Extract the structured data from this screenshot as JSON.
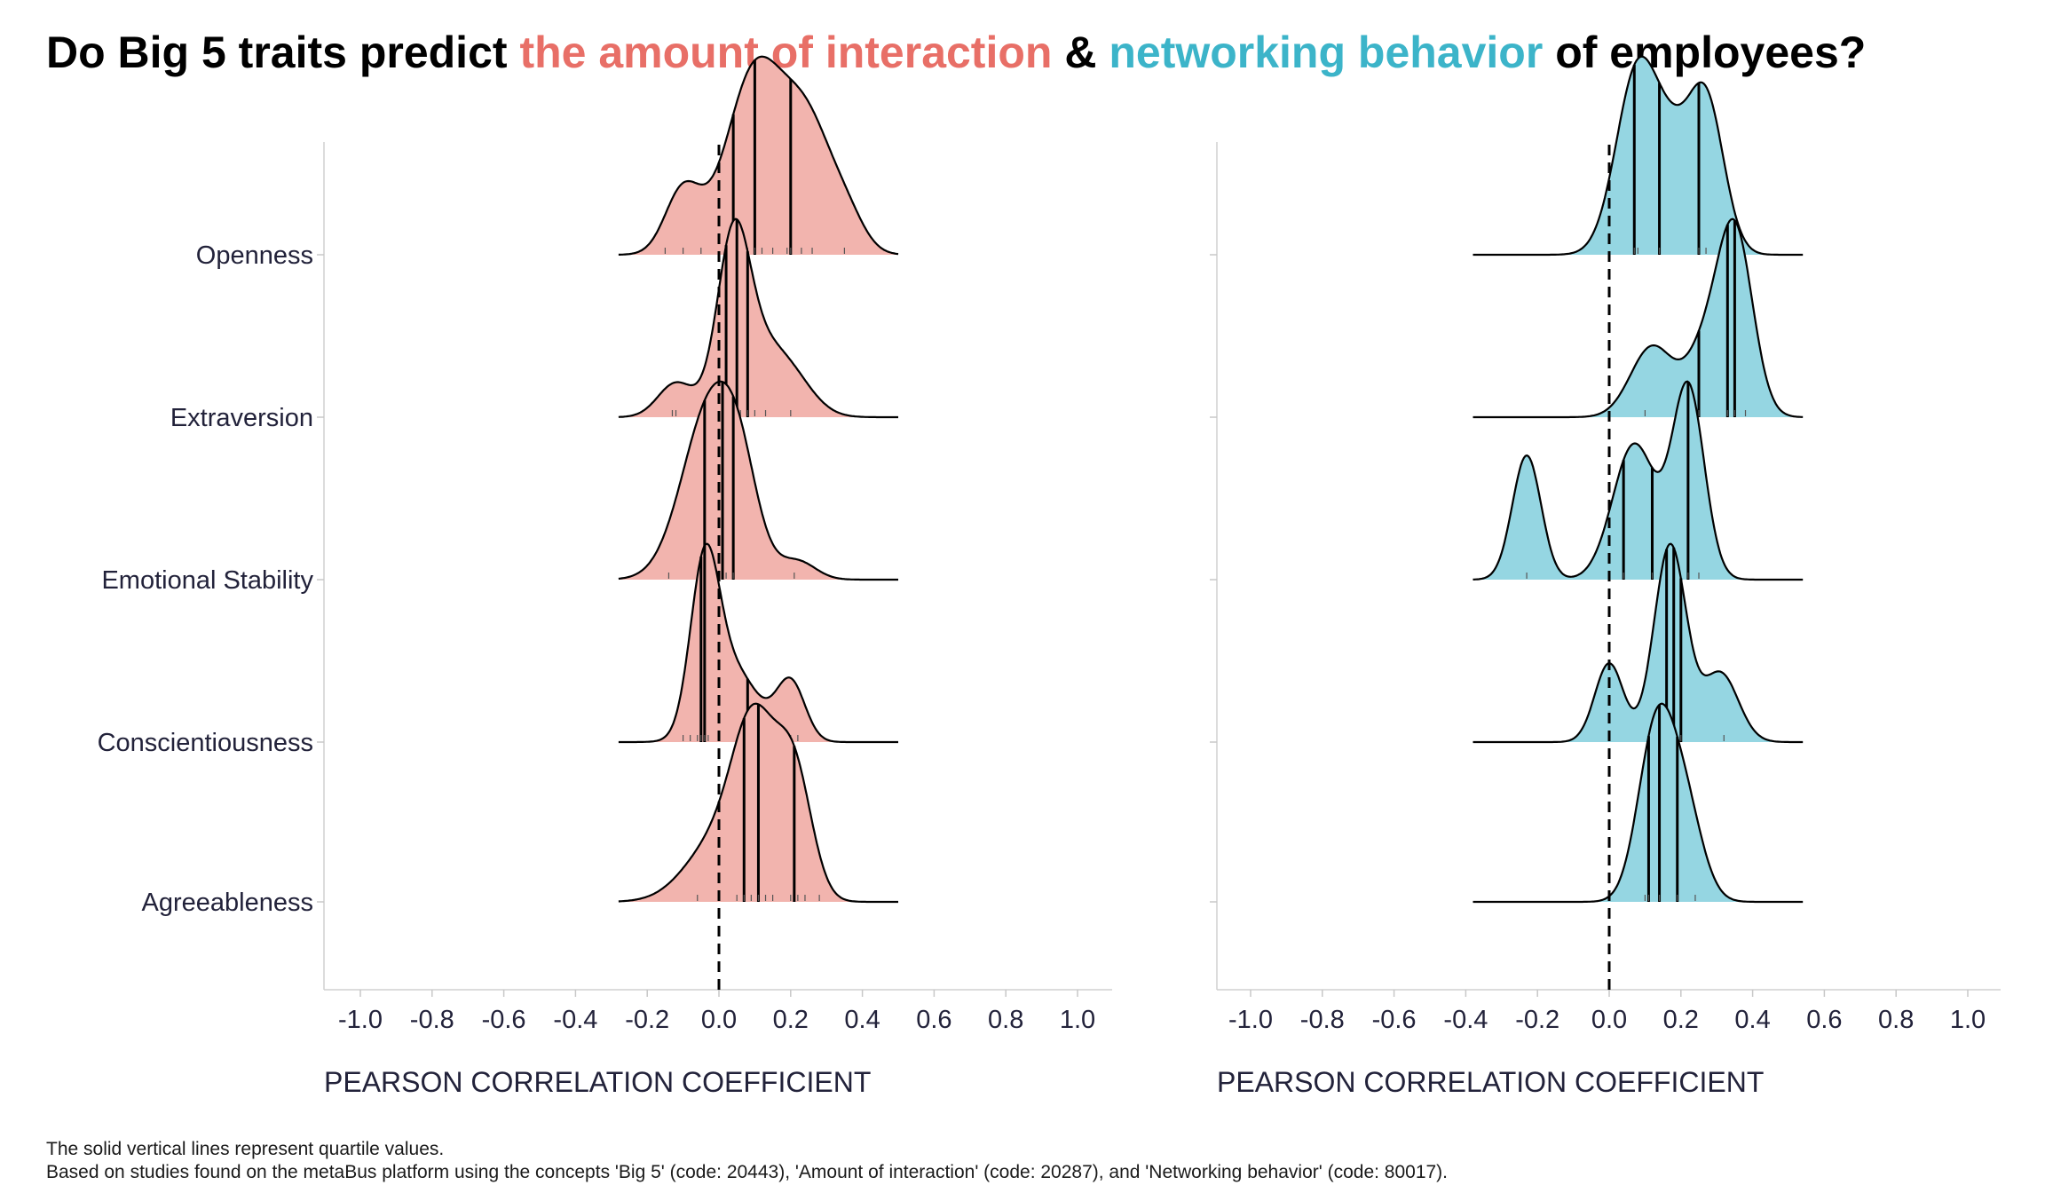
{
  "title": {
    "part1": "Do Big 5 traits predict ",
    "part2": "the amount of interaction",
    "part3": " & ",
    "part4": "networking behavior",
    "part5": " of employees?"
  },
  "colors": {
    "interaction": "#e86f67",
    "interaction_fill": "#f2b4ae",
    "networking": "#3cb4c9",
    "networking_fill": "#95d6e2"
  },
  "caption": {
    "line1": "The solid vertical lines represent quartile values.",
    "line2": "Based on studies found on the metaBus platform using the concepts 'Big 5' (code: 20443), 'Amount of interaction' (code: 20287), and 'Networking behavior' (code: 80017)."
  },
  "chart_data": [
    {
      "type": "ridgeline",
      "panel": "amount of interaction",
      "xlabel": "PEARSON CORRELATION COEFFICIENT",
      "xlim": [
        -1.1,
        1.1
      ],
      "xticks": [
        "-1.0",
        "-0.8",
        "-0.6",
        "-0.4",
        "-0.2",
        "0.0",
        "0.2",
        "0.4",
        "0.6",
        "0.8",
        "1.0"
      ],
      "reference_line": 0,
      "fill_color": "#f2b4ae",
      "categories": [
        "Openness",
        "Extraversion",
        "Emotional Stability",
        "Conscientiousness",
        "Agreeableness"
      ],
      "series": [
        {
          "name": "Openness",
          "range": [
            -0.28,
            0.5
          ],
          "components": [
            [
              -0.1,
              0.05,
              0.35
            ],
            [
              0.1,
              0.08,
              1.0
            ],
            [
              0.25,
              0.07,
              0.65
            ],
            [
              0.36,
              0.05,
              0.15
            ]
          ],
          "quartiles": [
            0.04,
            0.1,
            0.2
          ],
          "rug": [
            -0.15,
            -0.1,
            -0.05,
            0.02,
            0.05,
            0.08,
            0.1,
            0.12,
            0.15,
            0.19,
            0.2,
            0.23,
            0.26,
            0.35
          ]
        },
        {
          "name": "Extraversion",
          "range": [
            -0.28,
            0.5
          ],
          "components": [
            [
              -0.12,
              0.05,
              0.22
            ],
            [
              0.04,
              0.045,
              1.0
            ],
            [
              0.12,
              0.08,
              0.45
            ],
            [
              0.22,
              0.06,
              0.1
            ]
          ],
          "quartiles": [
            0.02,
            0.05,
            0.08
          ],
          "rug": [
            -0.13,
            -0.12,
            0.01,
            0.02,
            0.04,
            0.05,
            0.06,
            0.08,
            0.1,
            0.13,
            0.2
          ]
        },
        {
          "name": "Emotional Stability",
          "range": [
            -0.28,
            0.5
          ],
          "components": [
            [
              -0.02,
              0.08,
              1.0
            ],
            [
              0.06,
              0.05,
              0.3
            ],
            [
              0.22,
              0.05,
              0.1
            ]
          ],
          "quartiles": [
            -0.04,
            0.01,
            0.04
          ],
          "rug": [
            -0.14,
            -0.05,
            -0.02,
            0.0,
            0.02,
            0.04,
            0.21
          ]
        },
        {
          "name": "Conscientiousness",
          "range": [
            -0.28,
            0.5
          ],
          "components": [
            [
              -0.04,
              0.04,
              1.0
            ],
            [
              0.04,
              0.07,
              0.45
            ],
            [
              0.2,
              0.04,
              0.37
            ]
          ],
          "quartiles": [
            -0.05,
            -0.04,
            0.08
          ],
          "rug": [
            -0.1,
            -0.08,
            -0.06,
            -0.05,
            -0.04,
            -0.03,
            0.0,
            0.1,
            0.2,
            0.22
          ]
        },
        {
          "name": "Agreeableness",
          "range": [
            -0.28,
            0.5
          ],
          "components": [
            [
              0.0,
              0.09,
              0.3
            ],
            [
              0.1,
              0.06,
              0.75
            ],
            [
              0.21,
              0.05,
              0.6
            ]
          ],
          "quartiles": [
            0.07,
            0.11,
            0.21
          ],
          "rug": [
            -0.06,
            0.05,
            0.07,
            0.09,
            0.11,
            0.13,
            0.15,
            0.2,
            0.22,
            0.24,
            0.28
          ]
        }
      ]
    },
    {
      "type": "ridgeline",
      "panel": "networking behavior",
      "xlabel": "PEARSON CORRELATION COEFFICIENT",
      "xlim": [
        -1.1,
        1.1
      ],
      "xticks": [
        "-1.0",
        "-0.8",
        "-0.6",
        "-0.4",
        "-0.2",
        "0.0",
        "0.2",
        "0.4",
        "0.6",
        "0.8",
        "1.0"
      ],
      "reference_line": 0,
      "fill_color": "#95d6e2",
      "categories": [
        "Openness",
        "Extraversion",
        "Emotional Stability",
        "Conscientiousness",
        "Agreeableness"
      ],
      "series": [
        {
          "name": "Openness",
          "range": [
            -0.38,
            0.54
          ],
          "components": [
            [
              0.08,
              0.06,
              1.0
            ],
            [
              0.27,
              0.05,
              0.82
            ],
            [
              0.18,
              0.05,
              0.4
            ]
          ],
          "quartiles": [
            0.07,
            0.14,
            0.25
          ],
          "rug": [
            0.07,
            0.08,
            0.14,
            0.25,
            0.27
          ]
        },
        {
          "name": "Extraversion",
          "range": [
            -0.38,
            0.54
          ],
          "components": [
            [
              0.35,
              0.05,
              1.0
            ],
            [
              0.12,
              0.06,
              0.38
            ],
            [
              0.26,
              0.05,
              0.3
            ]
          ],
          "quartiles": [
            0.25,
            0.33,
            0.35
          ],
          "rug": [
            0.1,
            0.25,
            0.33,
            0.35,
            0.38
          ]
        },
        {
          "name": "Emotional Stability",
          "range": [
            -0.38,
            0.54
          ],
          "components": [
            [
              -0.23,
              0.04,
              0.55
            ],
            [
              0.07,
              0.06,
              0.6
            ],
            [
              0.22,
              0.045,
              0.85
            ]
          ],
          "quartiles": [
            0.04,
            0.12,
            0.22
          ],
          "rug": [
            -0.23,
            0.04,
            0.12,
            0.22,
            0.25
          ]
        },
        {
          "name": "Conscientiousness",
          "range": [
            -0.38,
            0.54
          ],
          "components": [
            [
              0.0,
              0.04,
              0.4
            ],
            [
              0.17,
              0.045,
              1.0
            ],
            [
              0.31,
              0.05,
              0.35
            ]
          ],
          "quartiles": [
            0.16,
            0.18,
            0.2
          ],
          "rug": [
            0.0,
            0.16,
            0.18,
            0.2,
            0.32
          ]
        },
        {
          "name": "Agreeableness",
          "range": [
            -0.38,
            0.54
          ],
          "components": [
            [
              0.13,
              0.05,
              1.0
            ],
            [
              0.21,
              0.05,
              0.55
            ]
          ],
          "quartiles": [
            0.11,
            0.14,
            0.19
          ],
          "rug": [
            0.1,
            0.11,
            0.14,
            0.19,
            0.24
          ]
        }
      ]
    }
  ]
}
